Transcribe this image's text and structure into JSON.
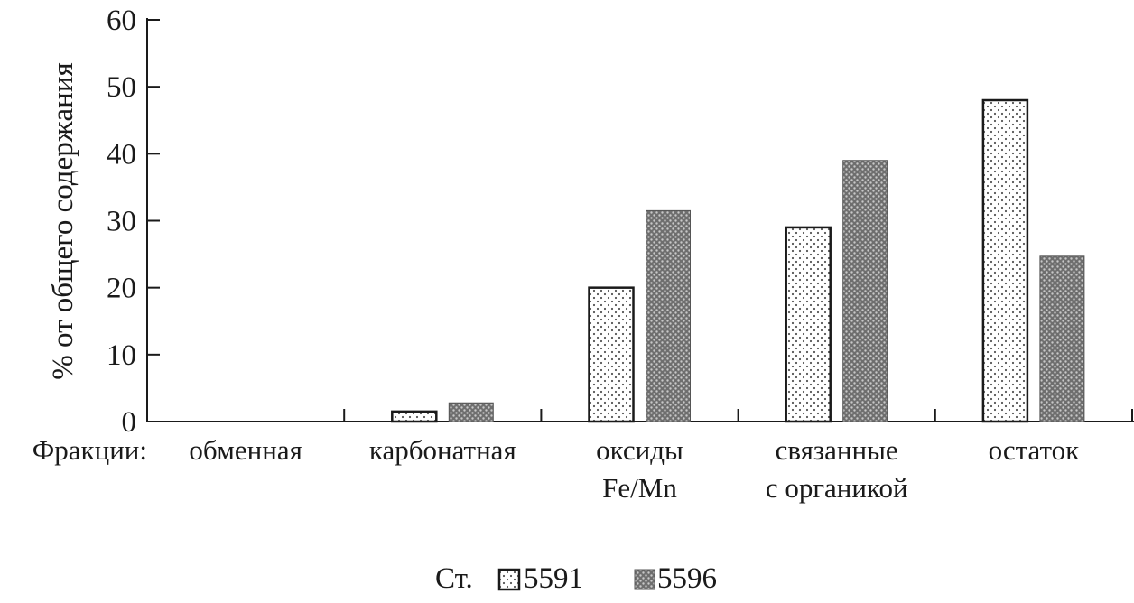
{
  "chart_data": {
    "type": "bar",
    "ylabel": "% от общего содержания",
    "xlabel": "Фракции:",
    "categories": [
      [
        "обменная"
      ],
      [
        "карбонатная"
      ],
      [
        "оксиды",
        "Fe/Mn"
      ],
      [
        "связанные",
        "с органикой"
      ],
      [
        "остаток"
      ]
    ],
    "ylim": [
      0,
      60
    ],
    "yticks": [
      0,
      10,
      20,
      30,
      40,
      50,
      60
    ],
    "series": [
      {
        "name": "5591",
        "values": [
          0,
          1.5,
          20,
          29,
          48
        ],
        "pattern": "light-dots",
        "color": "#ffffff"
      },
      {
        "name": "5596",
        "values": [
          0,
          2.8,
          31.5,
          39,
          24.7
        ],
        "pattern": "dark-dots",
        "color": "#8a8a8a"
      }
    ],
    "legend": {
      "prefix": "Ст.",
      "placement": "bottom-center"
    },
    "grid": false
  }
}
